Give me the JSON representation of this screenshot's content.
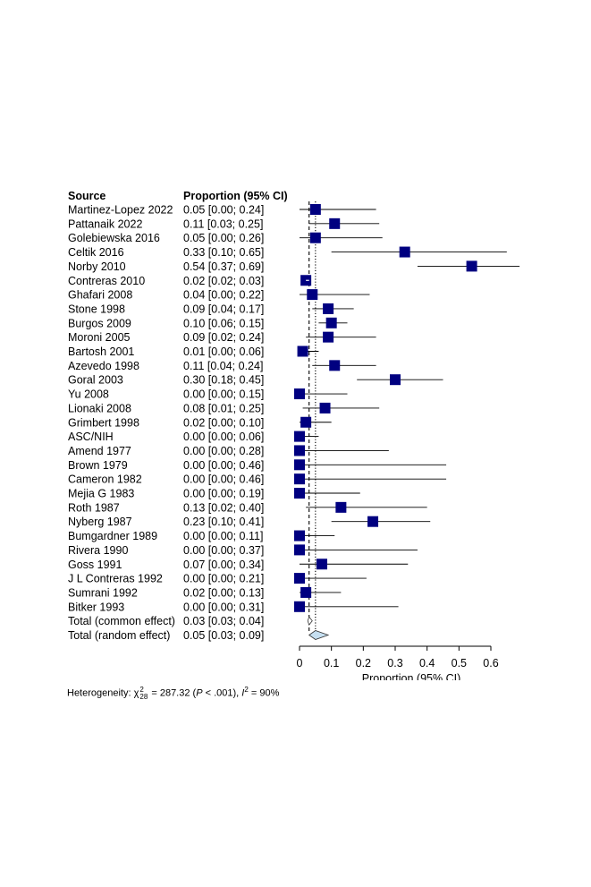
{
  "chart_data": {
    "type": "forest",
    "headers": {
      "source": "Source",
      "estimate": "Proportion (95% CI)"
    },
    "xlabel": "Proportion (95% CI)",
    "xlim": [
      0,
      0.6
    ],
    "ticks": [
      "0",
      "0.1",
      "0.2",
      "0.3",
      "0.4",
      "0.5",
      "0.6"
    ],
    "colors": {
      "marker": "#000080",
      "diamond": "#c6dff0",
      "line": "#000000"
    },
    "studies": [
      {
        "source": "Martinez-Lopez 2022",
        "label": "0.05 [0.00; 0.24]",
        "est": 0.05,
        "lo": 0.0,
        "hi": 0.24,
        "weight": 3.0
      },
      {
        "source": "Pattanaik 2022",
        "label": "0.11 [0.03; 0.25]",
        "est": 0.11,
        "lo": 0.03,
        "hi": 0.25,
        "weight": 3.0
      },
      {
        "source": "Golebiewska 2016",
        "label": "0.05 [0.00; 0.26]",
        "est": 0.05,
        "lo": 0.0,
        "hi": 0.26,
        "weight": 3.0
      },
      {
        "source": "Celtik 2016",
        "label": "0.33 [0.10; 0.65]",
        "est": 0.33,
        "lo": 0.1,
        "hi": 0.65,
        "weight": 3.0
      },
      {
        "source": "Norby 2010",
        "label": "0.54 [0.37; 0.69]",
        "est": 0.54,
        "lo": 0.37,
        "hi": 0.69,
        "weight": 3.0
      },
      {
        "source": "Contreras 2010",
        "label": "0.02 [0.02; 0.03]",
        "est": 0.02,
        "lo": 0.02,
        "hi": 0.03,
        "weight": 3.0
      },
      {
        "source": "Ghafari 2008",
        "label": "0.04 [0.00; 0.22]",
        "est": 0.04,
        "lo": 0.0,
        "hi": 0.22,
        "weight": 3.0
      },
      {
        "source": "Stone 1998",
        "label": "0.09 [0.04; 0.17]",
        "est": 0.09,
        "lo": 0.04,
        "hi": 0.17,
        "weight": 3.0
      },
      {
        "source": "Burgos 2009",
        "label": "0.10 [0.06; 0.15]",
        "est": 0.1,
        "lo": 0.06,
        "hi": 0.15,
        "weight": 3.0
      },
      {
        "source": "Moroni 2005",
        "label": "0.09 [0.02; 0.24]",
        "est": 0.09,
        "lo": 0.02,
        "hi": 0.24,
        "weight": 3.0
      },
      {
        "source": "Bartosh 2001",
        "label": "0.01 [0.00; 0.06]",
        "est": 0.01,
        "lo": 0.0,
        "hi": 0.06,
        "weight": 3.0
      },
      {
        "source": "Azevedo 1998",
        "label": "0.11 [0.04; 0.24]",
        "est": 0.11,
        "lo": 0.04,
        "hi": 0.24,
        "weight": 3.0
      },
      {
        "source": "Goral 2003",
        "label": "0.30 [0.18; 0.45]",
        "est": 0.3,
        "lo": 0.18,
        "hi": 0.45,
        "weight": 3.0
      },
      {
        "source": "Yu 2008",
        "label": "0.00 [0.00; 0.15]",
        "est": 0.0,
        "lo": 0.0,
        "hi": 0.15,
        "weight": 3.0
      },
      {
        "source": "Lionaki 2008",
        "label": "0.08 [0.01; 0.25]",
        "est": 0.08,
        "lo": 0.01,
        "hi": 0.25,
        "weight": 3.0
      },
      {
        "source": "Grimbert 1998",
        "label": "0.02 [0.00; 0.10]",
        "est": 0.02,
        "lo": 0.0,
        "hi": 0.1,
        "weight": 3.0
      },
      {
        "source": "ASC/NIH",
        "label": "0.00 [0.00; 0.06]",
        "est": 0.0,
        "lo": 0.0,
        "hi": 0.06,
        "weight": 3.0
      },
      {
        "source": "Amend 1977",
        "label": "0.00 [0.00; 0.28]",
        "est": 0.0,
        "lo": 0.0,
        "hi": 0.28,
        "weight": 3.0
      },
      {
        "source": "Brown 1979",
        "label": "0.00 [0.00; 0.46]",
        "est": 0.0,
        "lo": 0.0,
        "hi": 0.46,
        "weight": 3.0
      },
      {
        "source": "Cameron 1982",
        "label": "0.00 [0.00; 0.46]",
        "est": 0.0,
        "lo": 0.0,
        "hi": 0.46,
        "weight": 3.0
      },
      {
        "source": "Mejia G 1983",
        "label": "0.00 [0.00; 0.19]",
        "est": 0.0,
        "lo": 0.0,
        "hi": 0.19,
        "weight": 3.0
      },
      {
        "source": "Roth 1987",
        "label": "0.13 [0.02; 0.40]",
        "est": 0.13,
        "lo": 0.02,
        "hi": 0.4,
        "weight": 3.0
      },
      {
        "source": "Nyberg 1987",
        "label": "0.23 [0.10; 0.41]",
        "est": 0.23,
        "lo": 0.1,
        "hi": 0.41,
        "weight": 3.0
      },
      {
        "source": "Bumgardner 1989",
        "label": "0.00 [0.00; 0.11]",
        "est": 0.0,
        "lo": 0.0,
        "hi": 0.11,
        "weight": 3.0
      },
      {
        "source": "Rivera 1990",
        "label": "0.00 [0.00; 0.37]",
        "est": 0.0,
        "lo": 0.0,
        "hi": 0.37,
        "weight": 3.0
      },
      {
        "source": "Goss 1991",
        "label": "0.07 [0.00; 0.34]",
        "est": 0.07,
        "lo": 0.0,
        "hi": 0.34,
        "weight": 3.0
      },
      {
        "source": "J L Contreras 1992",
        "label": "0.00 [0.00; 0.21]",
        "est": 0.0,
        "lo": 0.0,
        "hi": 0.21,
        "weight": 3.0
      },
      {
        "source": "Sumrani 1992",
        "label": "0.02 [0.00; 0.13]",
        "est": 0.02,
        "lo": 0.0,
        "hi": 0.13,
        "weight": 3.0
      },
      {
        "source": "Bitker 1993",
        "label": "0.00 [0.00; 0.31]",
        "est": 0.0,
        "lo": 0.0,
        "hi": 0.31,
        "weight": 3.0
      }
    ],
    "pooled": [
      {
        "source": "Total (common effect)",
        "label": "0.03 [0.03; 0.04]",
        "est": 0.03,
        "lo": 0.03,
        "hi": 0.04
      },
      {
        "source": "Total (random effect)",
        "label": "0.05 [0.03; 0.09]",
        "est": 0.05,
        "lo": 0.03,
        "hi": 0.09
      }
    ],
    "reference_lines": [
      {
        "value": 0.03,
        "style": "dashed"
      },
      {
        "value": 0.05,
        "style": "dotted"
      }
    ],
    "heterogeneity": {
      "prefix": "Heterogeneity: ",
      "chi": "χ",
      "chi_sup": "2",
      "chi_sub": "28",
      "stat": " = 287.32 (",
      "p_symbol": "P",
      "p_text": " < .001), ",
      "i_symbol": "I",
      "i_sup": "2",
      "i_text": " = 90%"
    }
  }
}
